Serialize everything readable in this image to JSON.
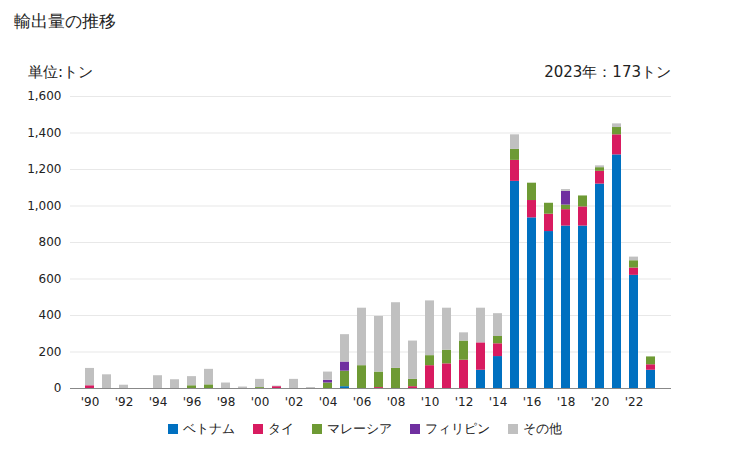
{
  "chart_data": {
    "type": "bar",
    "title": "輸出量の推移",
    "y_label": "単位:トン",
    "annotation": "2023年：173トン",
    "stacked": true,
    "grid": true,
    "categories": [
      "'90",
      null,
      "'92",
      null,
      "'94",
      null,
      "'96",
      null,
      "'98",
      null,
      "'00",
      null,
      "'02",
      null,
      "'04",
      null,
      "'06",
      null,
      "'08",
      null,
      "'10",
      null,
      "'12",
      null,
      "'14",
      null,
      "'16",
      null,
      "'18",
      null,
      "'20",
      null,
      "'22",
      null
    ],
    "ylim": [
      0,
      1600
    ],
    "yticks": [
      0,
      200,
      400,
      600,
      800,
      {
        "value": 1000,
        "label": "1,000"
      },
      {
        "value": 1200,
        "label": "1,200"
      },
      {
        "value": 1400,
        "label": "1,400"
      },
      {
        "value": 1600,
        "label": "1,600"
      }
    ],
    "legend": "bottom",
    "series": [
      {
        "name": "ベトナム",
        "color": "#0070c0",
        "values": [
          0,
          0,
          0,
          0,
          0,
          0,
          0,
          0,
          0,
          0,
          0,
          0,
          0,
          0,
          0,
          10,
          0,
          0,
          0,
          0,
          0,
          0,
          0,
          100,
          175,
          1135,
          935,
          860,
          890,
          890,
          1120,
          1280,
          620,
          100
        ]
      },
      {
        "name": "タイ",
        "color": "#d81b60",
        "values": [
          15,
          0,
          0,
          0,
          0,
          0,
          0,
          0,
          0,
          0,
          0,
          10,
          0,
          0,
          0,
          0,
          0,
          5,
          0,
          10,
          125,
          135,
          155,
          150,
          70,
          115,
          95,
          95,
          90,
          105,
          70,
          110,
          40,
          30
        ]
      },
      {
        "name": "マレーシア",
        "color": "#6e9a34",
        "values": [
          0,
          0,
          0,
          0,
          0,
          0,
          15,
          20,
          0,
          0,
          5,
          0,
          0,
          0,
          30,
          85,
          125,
          85,
          110,
          40,
          55,
          75,
          105,
          0,
          40,
          60,
          95,
          60,
          25,
          60,
          20,
          40,
          40,
          43
        ]
      },
      {
        "name": "フィリピン",
        "color": "#7030a0",
        "values": [
          0,
          0,
          0,
          0,
          0,
          0,
          0,
          0,
          0,
          0,
          0,
          0,
          0,
          0,
          15,
          50,
          0,
          0,
          0,
          0,
          0,
          0,
          0,
          0,
          0,
          0,
          0,
          0,
          75,
          0,
          0,
          0,
          0,
          0
        ]
      },
      {
        "name": "その他",
        "color": "#c0c0c0",
        "values": [
          95,
          75,
          18,
          0,
          70,
          48,
          50,
          85,
          30,
          8,
          45,
          3,
          50,
          5,
          45,
          150,
          315,
          305,
          360,
          210,
          300,
          230,
          45,
          190,
          125,
          80,
          0,
          0,
          10,
          0,
          10,
          20,
          20,
          0
        ]
      }
    ]
  }
}
